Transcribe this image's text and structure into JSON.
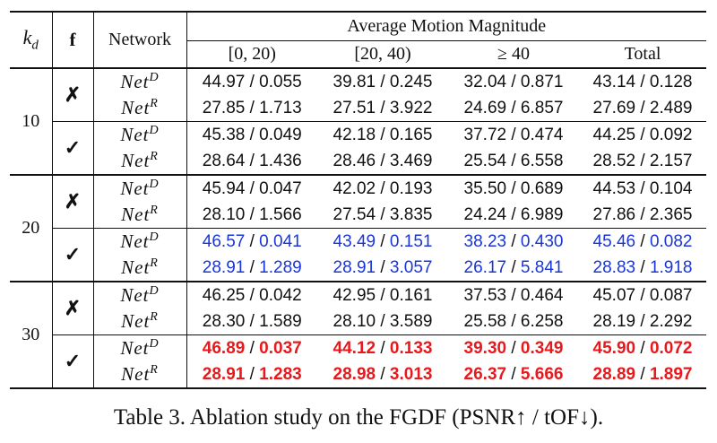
{
  "header": {
    "kd_symbol": "k",
    "kd_subscript": "d",
    "f_label": "f",
    "network_label": "Network",
    "group_label": "Average Motion Magnitude",
    "bins": [
      "[0, 20)",
      "[20, 40)",
      "≥ 40",
      "Total"
    ]
  },
  "network_names": {
    "D": "Net",
    "D_sup": "D",
    "R": "Net",
    "R_sup": "R"
  },
  "marks": {
    "no": "✗",
    "yes": "✓"
  },
  "groups": [
    {
      "kd": "10",
      "blocks": [
        {
          "f": "no",
          "rows": [
            {
              "net": "D",
              "cells": [
                "44.97 / 0.055",
                "39.81 / 0.245",
                "32.04 / 0.871",
                "43.14 / 0.128"
              ],
              "highlight": "none"
            },
            {
              "net": "R",
              "cells": [
                "27.85 / 1.713",
                "27.51 / 3.922",
                "24.69 / 6.857",
                "27.69 / 2.489"
              ],
              "highlight": "none"
            }
          ]
        },
        {
          "f": "yes",
          "rows": [
            {
              "net": "D",
              "cells": [
                "45.38 / 0.049",
                "42.18 / 0.165",
                "37.72 / 0.474",
                "44.25 / 0.092"
              ],
              "highlight": "none"
            },
            {
              "net": "R",
              "cells": [
                "28.64 / 1.436",
                "28.46 / 3.469",
                "25.54 / 6.558",
                "28.52 / 2.157"
              ],
              "highlight": "none"
            }
          ]
        }
      ]
    },
    {
      "kd": "20",
      "blocks": [
        {
          "f": "no",
          "rows": [
            {
              "net": "D",
              "cells": [
                "45.94 / 0.047",
                "42.02 / 0.193",
                "35.50 / 0.689",
                "44.53 / 0.104"
              ],
              "highlight": "none"
            },
            {
              "net": "R",
              "cells": [
                "28.10 / 1.566",
                "27.54 / 3.835",
                "24.24 / 6.989",
                "27.86 / 2.365"
              ],
              "highlight": "none"
            }
          ]
        },
        {
          "f": "yes",
          "rows": [
            {
              "net": "D",
              "cells": [
                "46.57 / 0.041",
                "43.49 / 0.151",
                "38.23 / 0.430",
                "45.46 / 0.082"
              ],
              "highlight": "second"
            },
            {
              "net": "R",
              "cells": [
                "28.91 / 1.289",
                "28.91 / 3.057",
                "26.17 / 5.841",
                "28.83 / 1.918"
              ],
              "highlight": "second"
            }
          ]
        }
      ]
    },
    {
      "kd": "30",
      "blocks": [
        {
          "f": "no",
          "rows": [
            {
              "net": "D",
              "cells": [
                "46.25 / 0.042",
                "42.95 / 0.161",
                "37.53 / 0.464",
                "45.07 / 0.087"
              ],
              "highlight": "none"
            },
            {
              "net": "R",
              "cells": [
                "28.30 / 1.589",
                "28.10 / 3.589",
                "25.58 / 6.258",
                "28.19 / 2.292"
              ],
              "highlight": "none"
            }
          ]
        },
        {
          "f": "yes",
          "rows": [
            {
              "net": "D",
              "cells": [
                "46.89 / 0.037",
                "44.12 / 0.133",
                "39.30 / 0.349",
                "45.90 / 0.072"
              ],
              "highlight": "best"
            },
            {
              "net": "R",
              "cells": [
                "28.91 / 1.283",
                "28.98 / 3.013",
                "26.37 / 5.666",
                "28.89 / 1.897"
              ],
              "highlight": "best"
            }
          ]
        }
      ]
    }
  ],
  "caption": "Table 3. Ablation study on the FGDF (PSNR↑ / tOF↓)."
}
